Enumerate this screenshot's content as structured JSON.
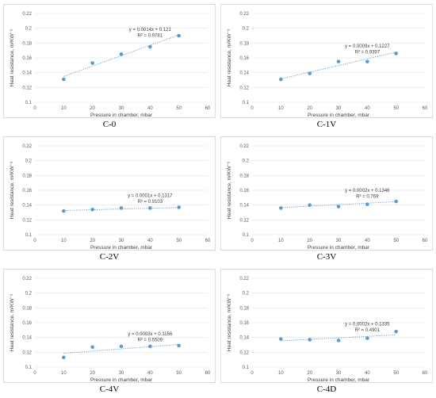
{
  "chart_data": [
    {
      "type": "scatter",
      "caption": "C-0",
      "xlabel": "Pressure in chamber, mbar",
      "ylabel": "Heat resistance, m²KW⁻¹",
      "xlim": [
        0,
        60
      ],
      "ylim": [
        0.1,
        0.22
      ],
      "xticks": [
        "0",
        "10",
        "20",
        "30",
        "40",
        "50",
        "60"
      ],
      "yticks": [
        "0.1",
        "0.12",
        "0.14",
        "0.16",
        "0.18",
        "0.2",
        "0.22"
      ],
      "grid": true,
      "x": [
        10,
        20,
        30,
        40,
        50
      ],
      "y": [
        0.131,
        0.153,
        0.165,
        0.175,
        0.19
      ],
      "trendline": {
        "slope": 0.0014,
        "intercept": 0.121
      },
      "equation": "y = 0.0014x + 0.121",
      "r2": "R² = 0.9781"
    },
    {
      "type": "scatter",
      "caption": "C-1V",
      "xlabel": "Pressure in chamber, mbar",
      "ylabel": "Heat resistance, m²KW⁻¹",
      "xlim": [
        0,
        60
      ],
      "ylim": [
        0.1,
        0.22
      ],
      "xticks": [
        "0",
        "10",
        "20",
        "30",
        "40",
        "50",
        "60"
      ],
      "yticks": [
        "0.1",
        "0.12",
        "0.14",
        "0.16",
        "0.18",
        "0.2",
        "0.22"
      ],
      "grid": true,
      "x": [
        10,
        20,
        30,
        40,
        50
      ],
      "y": [
        0.131,
        0.139,
        0.155,
        0.155,
        0.166
      ],
      "trendline": {
        "slope": 0.0009,
        "intercept": 0.1227
      },
      "equation": "y = 0.0009x + 0.1227",
      "r2": "R² = 0.9397"
    },
    {
      "type": "scatter",
      "caption": "C-2V",
      "xlabel": "Pressure in chamber, mbar",
      "ylabel": "Heat resistance, m²KW⁻¹",
      "xlim": [
        0,
        60
      ],
      "ylim": [
        0.1,
        0.22
      ],
      "xticks": [
        "0",
        "10",
        "20",
        "30",
        "40",
        "50",
        "60"
      ],
      "yticks": [
        "0.1",
        "0.12",
        "0.14",
        "0.16",
        "0.18",
        "0.2",
        "0.22"
      ],
      "grid": true,
      "x": [
        10,
        20,
        30,
        40,
        50
      ],
      "y": [
        0.132,
        0.134,
        0.136,
        0.136,
        0.137
      ],
      "trendline": {
        "slope": 0.0001,
        "intercept": 0.1317
      },
      "equation": "y = 0.0001x + 0.1317",
      "r2": "R² = 0.9103"
    },
    {
      "type": "scatter",
      "caption": "C-3V",
      "xlabel": "Pressure in chamber, mbar",
      "ylabel": "Heat resistance, m²KW⁻¹",
      "xlim": [
        0,
        60
      ],
      "ylim": [
        0.1,
        0.22
      ],
      "xticks": [
        "0",
        "10",
        "20",
        "30",
        "40",
        "50",
        "60"
      ],
      "yticks": [
        "0.1",
        "0.12",
        "0.14",
        "0.16",
        "0.18",
        "0.2",
        "0.22"
      ],
      "grid": true,
      "x": [
        10,
        20,
        30,
        40,
        50
      ],
      "y": [
        0.136,
        0.14,
        0.138,
        0.141,
        0.145
      ],
      "trendline": {
        "slope": 0.0002,
        "intercept": 0.1346
      },
      "equation": "y = 0.0002x + 0.1346",
      "r2": "R² = 0.769"
    },
    {
      "type": "scatter",
      "caption": "C-4V",
      "xlabel": "Pressure in chamber, mbar",
      "ylabel": "Heat resistance, m²KW⁻¹",
      "xlim": [
        0,
        60
      ],
      "ylim": [
        0.1,
        0.22
      ],
      "xticks": [
        "0",
        "10",
        "20",
        "30",
        "40",
        "50",
        "60"
      ],
      "yticks": [
        "0.1",
        "0.12",
        "0.14",
        "0.16",
        "0.18",
        "0.2",
        "0.22"
      ],
      "grid": true,
      "x": [
        10,
        20,
        30,
        40,
        50
      ],
      "y": [
        0.113,
        0.127,
        0.128,
        0.128,
        0.129
      ],
      "trendline": {
        "slope": 0.0003,
        "intercept": 0.1156
      },
      "equation": "y = 0.0003x + 0.1156",
      "r2": "R² = 0.5509"
    },
    {
      "type": "scatter",
      "caption": "C-4D",
      "xlabel": "Pressure in chamber, mbar",
      "ylabel": "Heat resistance, m²KW⁻¹",
      "xlim": [
        0,
        60
      ],
      "ylim": [
        0.1,
        0.22
      ],
      "xticks": [
        "0",
        "10",
        "20",
        "30",
        "40",
        "50",
        "60"
      ],
      "yticks": [
        "0.1",
        "0.12",
        "0.14",
        "0.16",
        "0.18",
        "0.2",
        "0.22"
      ],
      "grid": true,
      "x": [
        10,
        20,
        30,
        40,
        50
      ],
      "y": [
        0.138,
        0.137,
        0.136,
        0.139,
        0.148
      ],
      "trendline": {
        "slope": 0.0002,
        "intercept": 0.1335
      },
      "equation": "y = 0.0002x + 0.1335",
      "r2": "R² = 0.4901"
    }
  ]
}
